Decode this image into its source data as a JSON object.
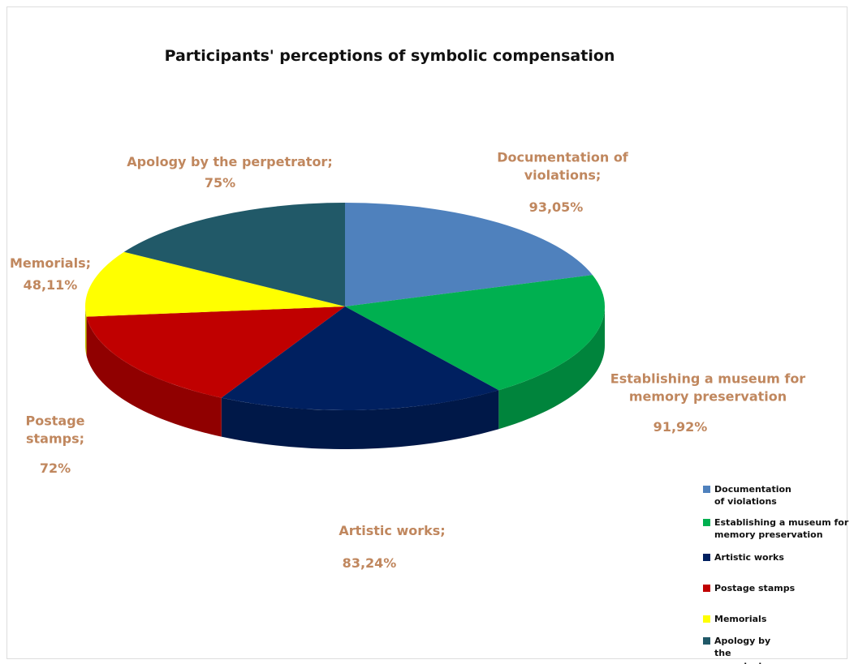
{
  "chart_data": {
    "type": "pie3d",
    "title": "Participants' perceptions of symbolic compensation",
    "categories": [
      "Documentation of violations",
      "Establishing a museum for memory preservation",
      "Artistic works",
      "Postage stamps",
      "Memorials",
      "Apology by the perpetrator"
    ],
    "label_names": [
      "Documentation of violations;",
      "Establishing a museum for memory preservation",
      "Artistic works;",
      "Postage stamps;",
      "Memorials;",
      "Apology by the perpetrator;"
    ],
    "values": [
      93.05,
      91.92,
      83.24,
      72,
      48.11,
      75
    ],
    "value_labels": [
      "93,05%",
      "91,92%",
      "83,24%",
      "72%",
      "48,11%",
      "75%"
    ],
    "colors": [
      "#4f81bd",
      "#00b050",
      "#002060",
      "#c00000",
      "#ffff00",
      "#215968"
    ],
    "legend": "bottom-right"
  }
}
